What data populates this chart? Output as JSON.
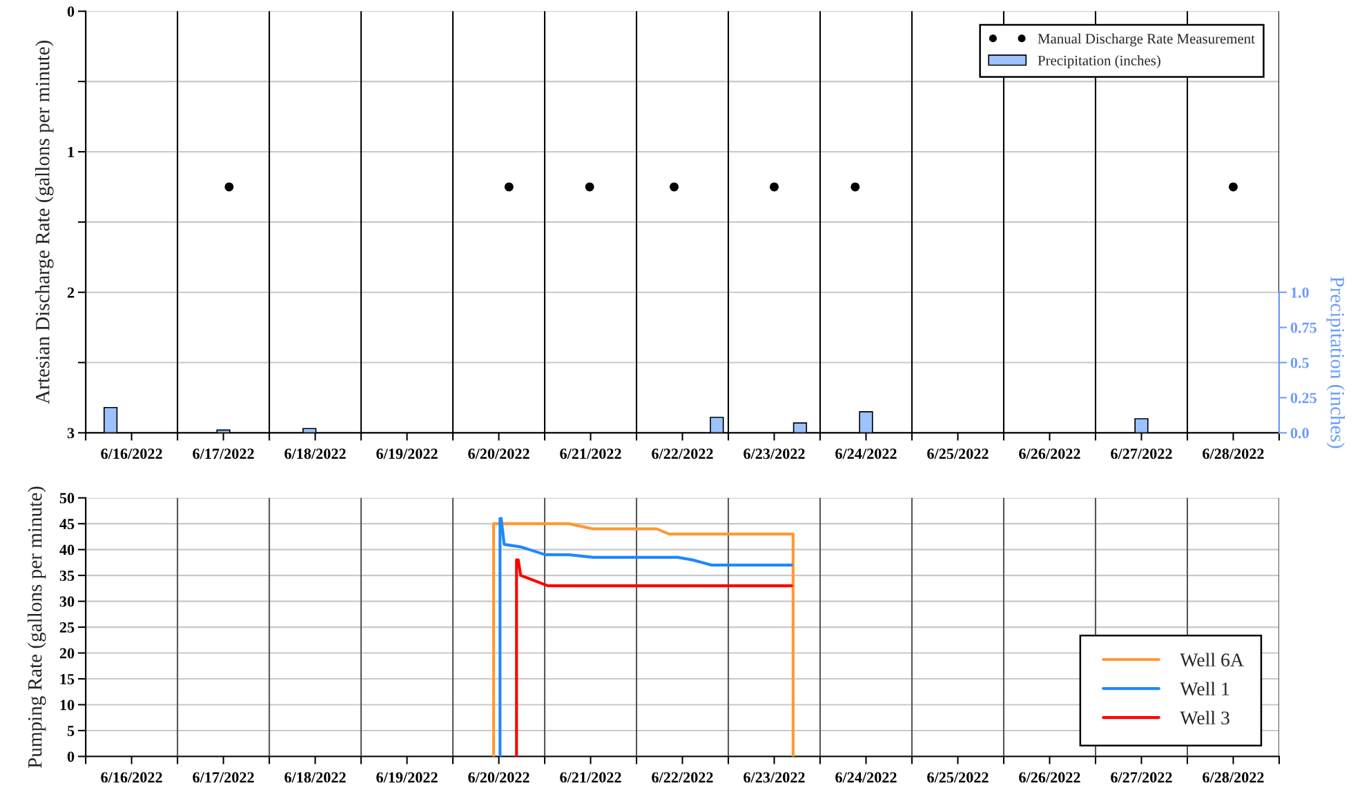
{
  "chart_data": [
    {
      "type": "scatter",
      "ylabel": "Artesian Discharge Rate (gallons per minute)",
      "y2label": "Precipitation (inches)",
      "xlim": [
        "2022-06-16T00:00",
        "2022-06-29T00:00"
      ],
      "xticks": [
        {
          "value": "2022-06-16T00:00",
          "label": null
        },
        {
          "value": "2022-06-16T12:00",
          "label": "6/16/2022"
        },
        {
          "value": "2022-06-17T00:00",
          "label": null
        },
        {
          "value": "2022-06-17T12:00",
          "label": "6/17/2022"
        },
        {
          "value": "2022-06-18T00:00",
          "label": null
        },
        {
          "value": "2022-06-18T12:00",
          "label": "6/18/2022"
        },
        {
          "value": "2022-06-19T00:00",
          "label": null
        },
        {
          "value": "2022-06-19T12:00",
          "label": "6/19/2022"
        },
        {
          "value": "2022-06-20T00:00",
          "label": null
        },
        {
          "value": "2022-06-20T12:00",
          "label": "6/20/2022"
        },
        {
          "value": "2022-06-21T00:00",
          "label": null
        },
        {
          "value": "2022-06-21T12:00",
          "label": "6/21/2022"
        },
        {
          "value": "2022-06-22T00:00",
          "label": null
        },
        {
          "value": "2022-06-22T12:00",
          "label": "6/22/2022"
        },
        {
          "value": "2022-06-23T00:00",
          "label": null
        },
        {
          "value": "2022-06-23T12:00",
          "label": "6/23/2022"
        },
        {
          "value": "2022-06-24T00:00",
          "label": null
        },
        {
          "value": "2022-06-24T12:00",
          "label": "6/24/2022"
        },
        {
          "value": "2022-06-25T00:00",
          "label": null
        },
        {
          "value": "2022-06-25T12:00",
          "label": "6/25/2022"
        },
        {
          "value": "2022-06-26T00:00",
          "label": null
        },
        {
          "value": "2022-06-26T12:00",
          "label": "6/26/2022"
        },
        {
          "value": "2022-06-27T00:00",
          "label": null
        },
        {
          "value": "2022-06-27T12:00",
          "label": "6/27/2022"
        },
        {
          "value": "2022-06-28T00:00",
          "label": null
        },
        {
          "value": "2022-06-28T12:00",
          "label": "6/28/2022"
        },
        {
          "value": "2022-06-29T00:00",
          "label": null
        }
      ],
      "ylim": [
        3,
        0
      ],
      "yticks": [
        0,
        {
          "value": 0.5,
          "label": null
        },
        1,
        {
          "value": 1.5,
          "label": null
        },
        2,
        {
          "value": 2.5,
          "label": null
        },
        3
      ],
      "y2lim": [
        0,
        3
      ],
      "y2ticks": [
        {
          "value": 0,
          "label": "0.0"
        },
        0.25,
        0.5,
        0.75,
        {
          "value": 1,
          "label": "1.0"
        }
      ],
      "grid": true,
      "legend": "top right",
      "marker": "circle",
      "series": [
        {
          "name": "Manual Discharge Rate Measurement",
          "type": "scatter",
          "color": "#000000",
          "x": [
            "2022-06-17T13:30",
            "2022-06-20T14:40",
            "2022-06-21T11:45",
            "2022-06-22T09:50",
            "2022-06-23T12:00",
            "2022-06-24T09:10",
            "2022-06-28T12:00"
          ],
          "values": [
            1.25,
            1.25,
            1.25,
            1.25,
            1.25,
            1.25,
            1.25
          ]
        },
        {
          "name": "Precipitation (inches)",
          "type": "bar",
          "axis": "y2",
          "color": "#9cc2ff",
          "x": [
            "2022-06-16T06:30",
            "2022-06-17T12:00",
            "2022-06-18T10:30",
            "2022-06-22T21:00",
            "2022-06-23T18:45",
            "2022-06-24T12:00",
            "2022-06-27T12:00"
          ],
          "values": [
            0.18,
            0.02,
            0.03,
            0.11,
            0.07,
            0.15,
            0.1
          ]
        }
      ]
    },
    {
      "type": "line",
      "ylabel": "Pumping Rate (gallons per minute)",
      "xlim": [
        "2022-06-16T00:00",
        "2022-06-29T00:00"
      ],
      "xticks": [
        {
          "value": "2022-06-16T00:00",
          "label": null
        },
        {
          "value": "2022-06-16T12:00",
          "label": "6/16/2022"
        },
        {
          "value": "2022-06-17T00:00",
          "label": null
        },
        {
          "value": "2022-06-17T12:00",
          "label": "6/17/2022"
        },
        {
          "value": "2022-06-18T00:00",
          "label": null
        },
        {
          "value": "2022-06-18T12:00",
          "label": "6/18/2022"
        },
        {
          "value": "2022-06-19T00:00",
          "label": null
        },
        {
          "value": "2022-06-19T12:00",
          "label": "6/19/2022"
        },
        {
          "value": "2022-06-20T00:00",
          "label": null
        },
        {
          "value": "2022-06-20T12:00",
          "label": "6/20/2022"
        },
        {
          "value": "2022-06-21T00:00",
          "label": null
        },
        {
          "value": "2022-06-21T12:00",
          "label": "6/21/2022"
        },
        {
          "value": "2022-06-22T00:00",
          "label": null
        },
        {
          "value": "2022-06-22T12:00",
          "label": "6/22/2022"
        },
        {
          "value": "2022-06-23T00:00",
          "label": null
        },
        {
          "value": "2022-06-23T12:00",
          "label": "6/23/2022"
        },
        {
          "value": "2022-06-24T00:00",
          "label": null
        },
        {
          "value": "2022-06-24T12:00",
          "label": "6/24/2022"
        },
        {
          "value": "2022-06-25T00:00",
          "label": null
        },
        {
          "value": "2022-06-25T12:00",
          "label": "6/25/2022"
        },
        {
          "value": "2022-06-26T00:00",
          "label": null
        },
        {
          "value": "2022-06-26T12:00",
          "label": "6/26/2022"
        },
        {
          "value": "2022-06-27T00:00",
          "label": null
        },
        {
          "value": "2022-06-27T12:00",
          "label": "6/27/2022"
        },
        {
          "value": "2022-06-28T00:00",
          "label": null
        },
        {
          "value": "2022-06-28T12:00",
          "label": "6/28/2022"
        },
        {
          "value": "2022-06-29T00:00",
          "label": null
        }
      ],
      "ylim": [
        0,
        50
      ],
      "yticks": [
        0,
        5,
        10,
        15,
        20,
        25,
        30,
        35,
        40,
        45,
        50
      ],
      "grid": true,
      "legend": "bottom right",
      "series": [
        {
          "name": "Well 6A",
          "color": "#ff9933",
          "x": [
            "2022-06-20T10:38",
            "2022-06-20T10:38",
            "2022-06-21T06:17",
            "2022-06-21T12:40",
            "2022-06-22T05:17",
            "2022-06-22T08:31",
            "2022-06-23T16:56",
            "2022-06-23T16:56"
          ],
          "values": [
            0,
            45,
            45,
            44,
            44,
            43,
            43,
            0
          ]
        },
        {
          "name": "Well 1",
          "color": "#1e88ff",
          "x": [
            "2022-06-20T12:19",
            "2022-06-20T12:19",
            "2022-06-20T12:37",
            "2022-06-20T13:25",
            "2022-06-20T17:51",
            "2022-06-21T00:10",
            "2022-06-21T06:17",
            "2022-06-21T12:40",
            "2022-06-22T10:47",
            "2022-06-22T14:38",
            "2022-06-22T19:37",
            "2022-06-23T16:33"
          ],
          "values": [
            0,
            46,
            46,
            41,
            40.5,
            39,
            39,
            38.5,
            38.5,
            38,
            37,
            37
          ]
        },
        {
          "name": "Well 3",
          "color": "#ff0000",
          "x": [
            "2022-06-20T16:38",
            "2022-06-20T16:38",
            "2022-06-20T17:05",
            "2022-06-20T17:43",
            "2022-06-21T00:49",
            "2022-06-23T16:33"
          ],
          "values": [
            0,
            38,
            38,
            35,
            33,
            33
          ]
        }
      ]
    }
  ]
}
